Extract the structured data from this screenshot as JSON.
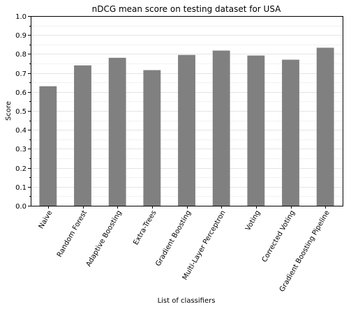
{
  "chart_data": {
    "type": "bar",
    "title": "nDCG mean score on testing dataset for USA",
    "xlabel": "List of classifiers",
    "ylabel": "Score",
    "ylim": [
      0,
      1.0
    ],
    "yticks": [
      "0.0",
      "0.1",
      "0.2",
      "0.3",
      "0.4",
      "0.5",
      "0.6",
      "0.7",
      "0.8",
      "0.9",
      "1.0"
    ],
    "grid": "horizontal",
    "bar_color": "#808080",
    "categories": [
      "Naive",
      "Random Forest",
      "Adaptive Boosting",
      "Extra-Trees",
      "Gradient Boosting",
      "Multi-Layer Perceptron",
      "Voting",
      "Corrected Voting",
      "Gradient Boosting Pipeline"
    ],
    "values": [
      0.63,
      0.74,
      0.78,
      0.715,
      0.795,
      0.818,
      0.792,
      0.77,
      0.833
    ]
  }
}
